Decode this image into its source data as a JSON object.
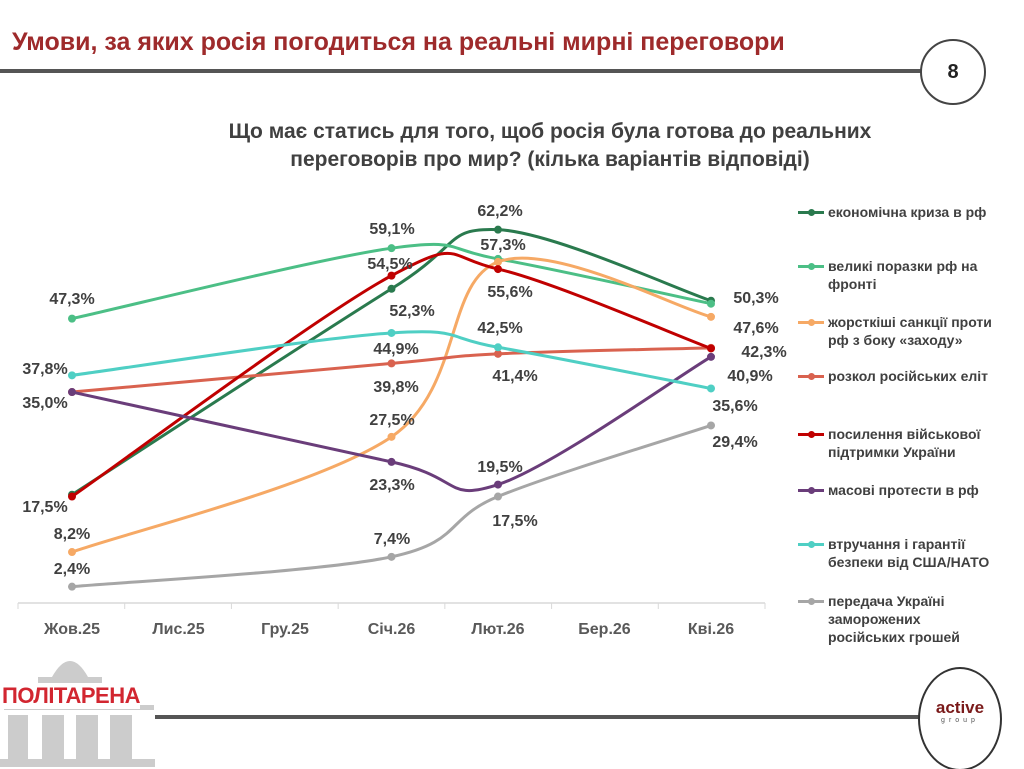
{
  "header": {
    "title": "Умови, за яких росія погодиться на реальні мирні переговори",
    "page_number": "8"
  },
  "footer": {
    "left_logo": "ПОЛІТАРЕНА",
    "right_logo_main": "active",
    "right_logo_sub": "group"
  },
  "chart_data": {
    "type": "line",
    "title": "Що має статись для того, щоб росія була готова до реальних переговорів про мир? (кілька варіантів відповіді)",
    "title_lines": [
      "Що має статись для того, щоб росія була готова до реальних",
      "переговорів про мир? (кілька варіантів відповіді)"
    ],
    "categories": [
      "Жов.25",
      "Лис.25",
      "Гру.25",
      "Січ.26",
      "Лют.26",
      "Бер.26",
      "Кві.26"
    ],
    "ylim": [
      0,
      65
    ],
    "grid": false,
    "legend_position": "right",
    "unit": "%",
    "series": [
      {
        "name": "економічна криза в рф",
        "color": "#2a7a4e",
        "values": [
          17.8,
          null,
          null,
          52.3,
          62.2,
          null,
          50.3
        ],
        "labels": [
          null,
          null,
          null,
          "52,3%",
          "62,2%",
          null,
          "50,3%"
        ]
      },
      {
        "name": "великі поразки рф на фронті",
        "color": "#4cbf86",
        "values": [
          47.3,
          null,
          null,
          59.1,
          57.3,
          null,
          49.8
        ],
        "labels": [
          "47,3%",
          null,
          null,
          "59,1%",
          "57,3%",
          null,
          null
        ]
      },
      {
        "name": "жорсткіші санкції проти рф з боку «заходу»",
        "color": "#f6a965",
        "values": [
          8.2,
          null,
          null,
          27.5,
          56.8,
          null,
          47.6
        ],
        "labels": [
          "8,2%",
          null,
          null,
          "27,5%",
          null,
          null,
          "47,6%"
        ]
      },
      {
        "name": "розкол російських еліт",
        "color": "#d9624f",
        "values": [
          35.0,
          null,
          null,
          39.8,
          41.4,
          null,
          42.4
        ],
        "labels": [
          "35,0%",
          null,
          null,
          "39,8%",
          "41,4%",
          null,
          null
        ]
      },
      {
        "name": "посилення військової підтримки України",
        "color": "#c00000",
        "values": [
          17.5,
          null,
          null,
          54.5,
          55.6,
          null,
          42.3
        ],
        "labels": [
          "17,5%",
          null,
          null,
          "54,5%",
          "55,6%",
          null,
          "42,3%"
        ]
      },
      {
        "name": "масові протести в рф",
        "color": "#6a3d7a",
        "values": [
          35.0,
          null,
          null,
          23.3,
          19.5,
          null,
          40.9
        ],
        "labels": [
          null,
          null,
          null,
          "23,3%",
          "19,5%",
          null,
          "40,9%"
        ]
      },
      {
        "name": "втручання і гарантії безпеки від США/НАТО",
        "color": "#4fcfc4",
        "values": [
          37.8,
          null,
          null,
          44.9,
          42.5,
          null,
          35.6
        ],
        "labels": [
          "37,8%",
          null,
          null,
          "44,9%",
          "42,5%",
          null,
          "35,6%"
        ]
      },
      {
        "name": "передача Україні заморожених російських грошей",
        "color": "#a6a6a6",
        "values": [
          2.4,
          null,
          null,
          7.4,
          17.5,
          null,
          29.4
        ],
        "labels": [
          "2,4%",
          null,
          null,
          "7,4%",
          "17,5%",
          null,
          "29,4%"
        ]
      }
    ],
    "legend_lines": [
      [
        "економічна криза в рф"
      ],
      [
        "великі поразки рф на",
        "фронті"
      ],
      [
        "жорсткіші санкції проти",
        "рф з боку «заходу»"
      ],
      [
        "розкол російських еліт"
      ],
      [
        "посилення військової",
        "підтримки України"
      ],
      [
        "масові протести в рф"
      ],
      [
        "втручання і гарантії",
        "безпеки від США/НАТО"
      ],
      [
        "передача Україні",
        "заморожених",
        "російських грошей"
      ]
    ]
  }
}
